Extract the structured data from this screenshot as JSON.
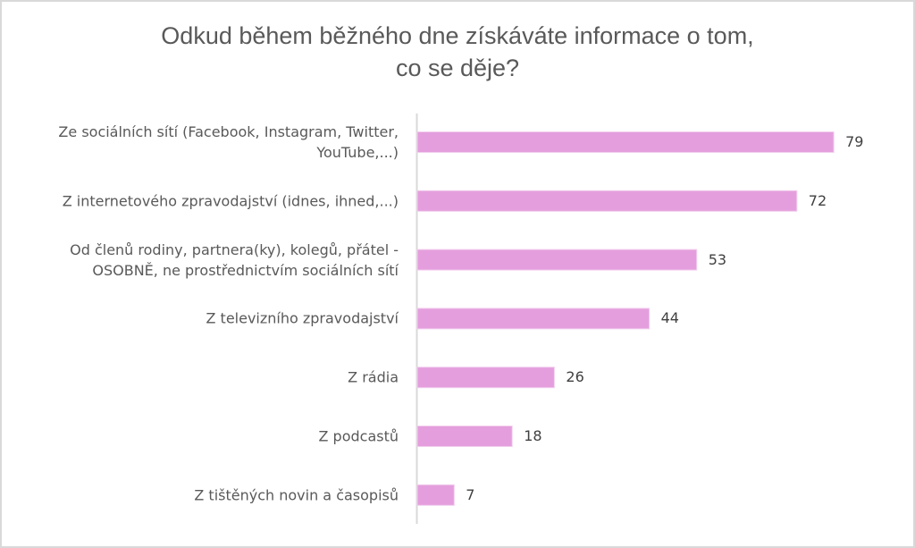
{
  "chart_data": {
    "type": "bar",
    "orientation": "horizontal",
    "title": "Odkud během běžného dne získáváte informace o tom, co se děje?",
    "title_lines": [
      "Odkud během běžného dne získáváte informace o tom,",
      "co se děje?"
    ],
    "categories": [
      [
        "Ze sociálních sítí (Facebook, Instagram, Twitter,",
        "YouTube,...)"
      ],
      [
        "Z internetového zpravodajství (idnes, ihned,...)"
      ],
      [
        "Od členů rodiny, partnera(ky), kolegů, přátel -",
        "OSOBNĚ, ne prostřednictvím sociálních sítí"
      ],
      [
        "Z televizního zpravodajství"
      ],
      [
        "Z rádia"
      ],
      [
        "Z podcastů"
      ],
      [
        "Z tištěných novin a časopisů"
      ]
    ],
    "values": [
      79,
      72,
      53,
      44,
      26,
      18,
      7
    ],
    "value_labels": [
      "79",
      "72",
      "53",
      "44",
      "26",
      "18",
      "7"
    ],
    "xlabel": "",
    "ylabel": "",
    "xlim": [
      0,
      80
    ],
    "grid": false,
    "legend": "none",
    "colors": {
      "bar": "#e49edd",
      "bar_edge": "#f2cfee",
      "axis": "#d9d9d9",
      "text": "#595959",
      "frame": "#d9d9d9"
    }
  }
}
